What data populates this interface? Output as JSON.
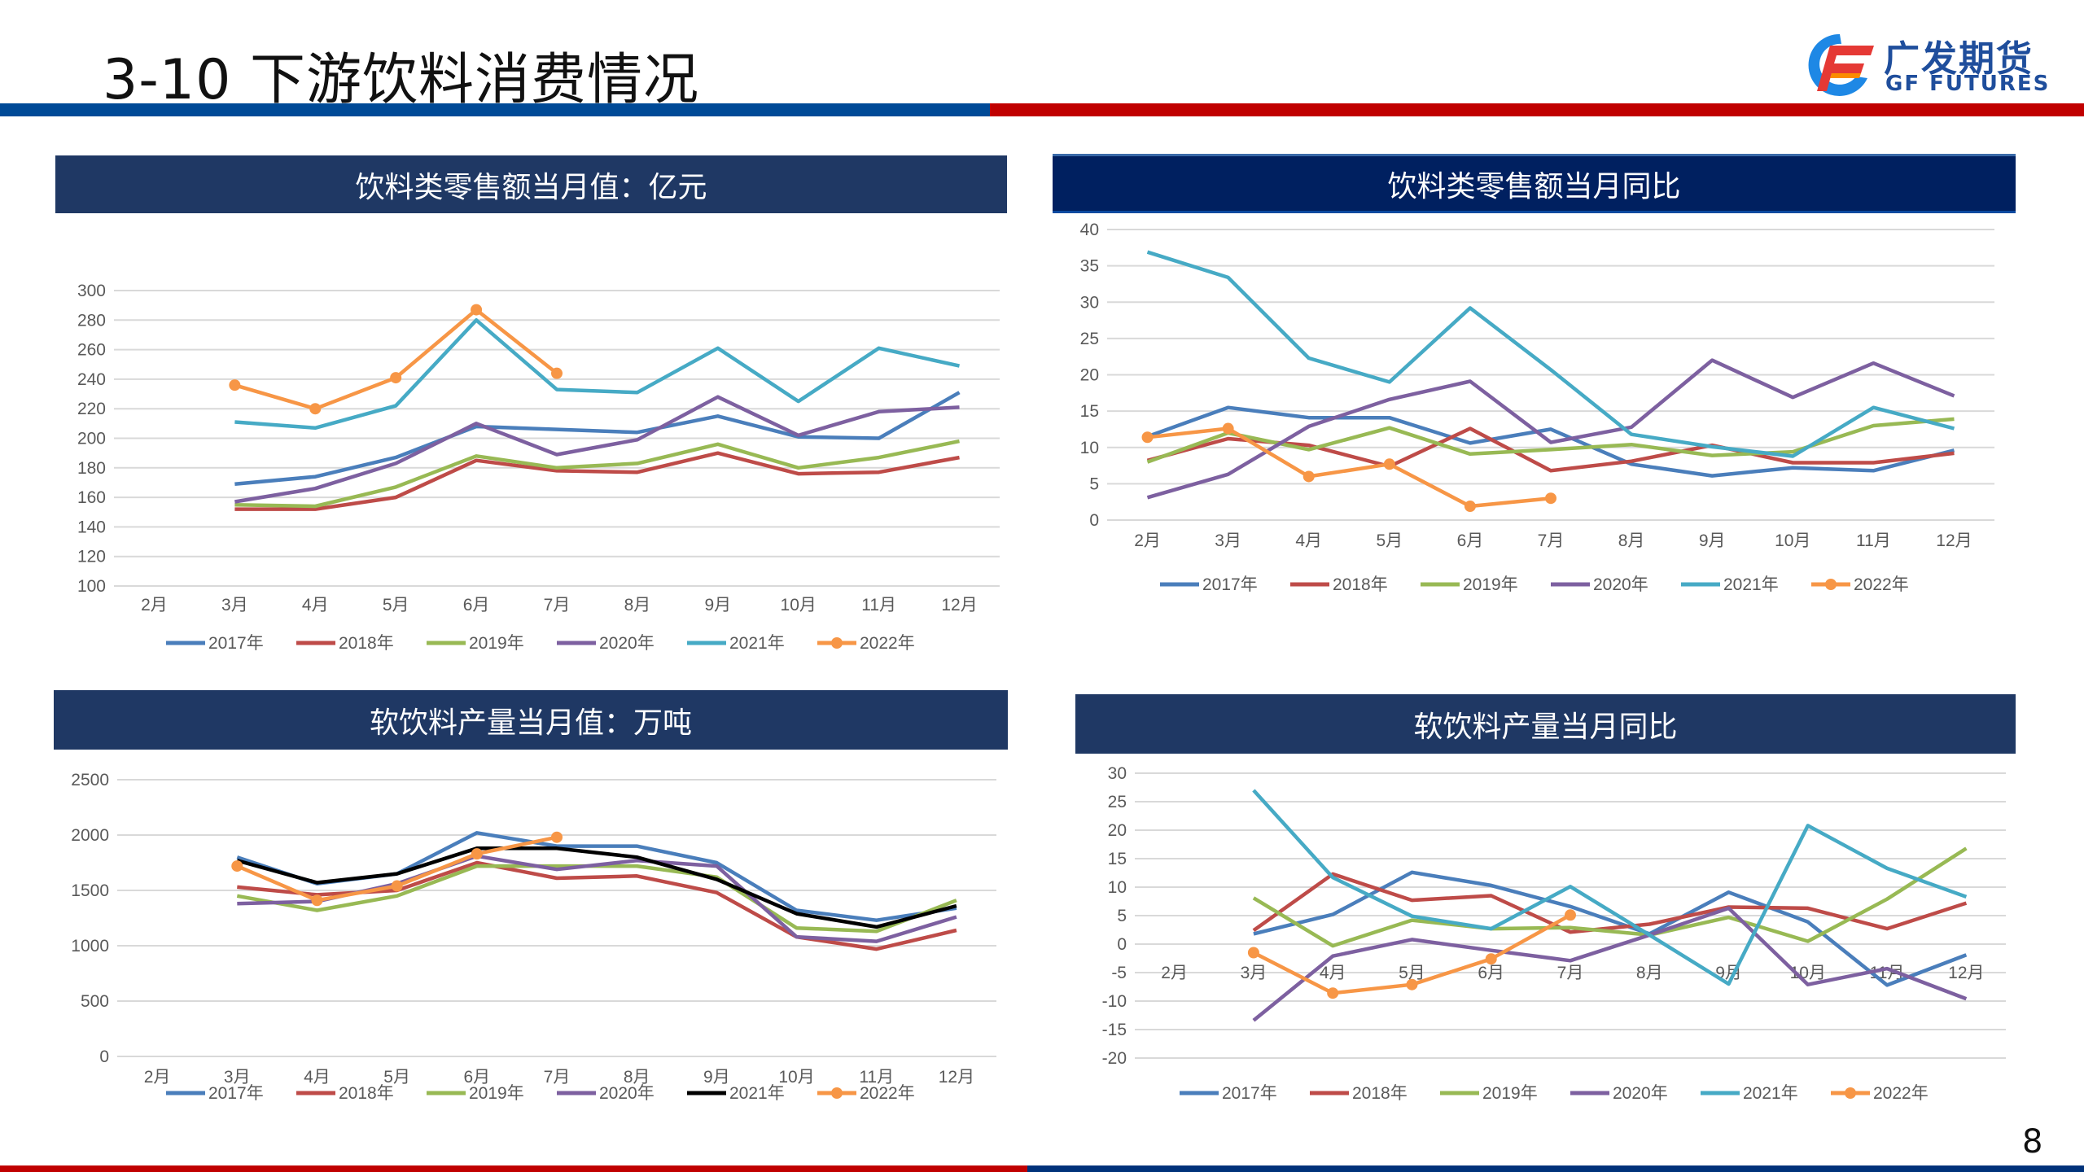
{
  "page": {
    "title": "3-10 下游饮料消费情况",
    "page_number": "8",
    "logo": {
      "cn": "广发期货",
      "en": "GF FUTURES"
    }
  },
  "colors": {
    "2017年": "#4a7ebb",
    "2018年": "#be4b48",
    "2019年": "#98b954",
    "2020年": "#7d60a0",
    "2021年": "#46aac5",
    "2021年_black": "#000000",
    "2022年": "#f79646"
  },
  "panels": [
    {
      "header": "饮料类零售额当月值：亿元"
    },
    {
      "header": "饮料类零售额当月同比"
    },
    {
      "header": "软饮料产量当月值：万吨"
    },
    {
      "header": "软饮料产量当月同比"
    }
  ],
  "chart_data": [
    {
      "type": "line",
      "title": "饮料类零售额当月值：亿元",
      "categories": [
        "2月",
        "3月",
        "4月",
        "5月",
        "6月",
        "7月",
        "8月",
        "9月",
        "10月",
        "11月",
        "12月"
      ],
      "ylim": [
        100,
        300
      ],
      "yticks": [
        100,
        120,
        140,
        160,
        180,
        200,
        220,
        240,
        260,
        280,
        300
      ],
      "grid": true,
      "legend": "bottom",
      "series": [
        {
          "name": "2017年",
          "color": "#4a7ebb",
          "values": [
            null,
            169,
            174,
            187,
            208,
            206,
            204,
            215,
            201,
            200,
            231
          ]
        },
        {
          "name": "2018年",
          "color": "#be4b48",
          "values": [
            null,
            152,
            152,
            160,
            185,
            178,
            177,
            190,
            176,
            177,
            187
          ]
        },
        {
          "name": "2019年",
          "color": "#98b954",
          "values": [
            null,
            155,
            154,
            167,
            188,
            180,
            183,
            196,
            180,
            187,
            198
          ]
        },
        {
          "name": "2020年",
          "color": "#7d60a0",
          "values": [
            null,
            157,
            166,
            183,
            210,
            189,
            199,
            228,
            202,
            218,
            221
          ]
        },
        {
          "name": "2021年",
          "color": "#46aac5",
          "values": [
            null,
            211,
            207,
            222,
            280,
            233,
            231,
            261,
            225,
            261,
            249
          ]
        },
        {
          "name": "2022年",
          "color": "#f79646",
          "marker": true,
          "values": [
            null,
            236,
            220,
            241,
            287,
            244,
            null,
            null,
            null,
            null,
            null
          ]
        }
      ]
    },
    {
      "type": "line",
      "title": "饮料类零售额当月同比",
      "categories": [
        "2月",
        "3月",
        "4月",
        "5月",
        "6月",
        "7月",
        "8月",
        "9月",
        "10月",
        "11月",
        "12月"
      ],
      "ylim": [
        0,
        40
      ],
      "yticks": [
        0,
        5,
        10,
        15,
        20,
        25,
        30,
        35,
        40
      ],
      "grid": true,
      "legend": "bottom",
      "series": [
        {
          "name": "2017年",
          "color": "#4a7ebb",
          "values": [
            11.5,
            15.5,
            14.1,
            14.1,
            10.6,
            12.5,
            7.7,
            6.1,
            7.2,
            6.8,
            9.6
          ]
        },
        {
          "name": "2018年",
          "color": "#be4b48",
          "values": [
            8.2,
            11.2,
            10.3,
            7.4,
            12.6,
            6.8,
            8.1,
            10.3,
            7.9,
            7.9,
            9.2
          ]
        },
        {
          "name": "2019年",
          "color": "#98b954",
          "values": [
            8.0,
            12.0,
            9.7,
            12.7,
            9.1,
            9.7,
            10.4,
            8.9,
            9.4,
            13.0,
            13.9
          ]
        },
        {
          "name": "2020年",
          "color": "#7d60a0",
          "values": [
            3.1,
            6.3,
            12.9,
            16.6,
            19.1,
            10.7,
            12.8,
            22.0,
            16.9,
            21.6,
            17.1
          ]
        },
        {
          "name": "2021年",
          "color": "#46aac5",
          "values": [
            36.9,
            33.4,
            22.3,
            19.0,
            29.2,
            20.7,
            11.8,
            10.1,
            8.8,
            15.5,
            12.6
          ]
        },
        {
          "name": "2022年",
          "color": "#f79646",
          "marker": true,
          "values": [
            11.4,
            12.6,
            6.0,
            7.7,
            1.9,
            3.0,
            null,
            null,
            null,
            null,
            null
          ]
        }
      ]
    },
    {
      "type": "line",
      "title": "软饮料产量当月值：万吨",
      "categories": [
        "2月",
        "3月",
        "4月",
        "5月",
        "6月",
        "7月",
        "8月",
        "9月",
        "10月",
        "11月",
        "12月"
      ],
      "ylim": [
        0,
        2500
      ],
      "yticks": [
        0,
        500,
        1000,
        1500,
        2000,
        2500
      ],
      "grid": true,
      "legend": "bottom",
      "series": [
        {
          "name": "2017年",
          "color": "#4a7ebb",
          "values": [
            null,
            1800,
            1560,
            1650,
            2020,
            1900,
            1900,
            1750,
            1320,
            1230,
            1340
          ]
        },
        {
          "name": "2018年",
          "color": "#be4b48",
          "values": [
            null,
            1530,
            1460,
            1500,
            1750,
            1610,
            1630,
            1480,
            1080,
            970,
            1140
          ]
        },
        {
          "name": "2019年",
          "color": "#98b954",
          "values": [
            null,
            1450,
            1320,
            1450,
            1720,
            1720,
            1720,
            1620,
            1160,
            1130,
            1410
          ]
        },
        {
          "name": "2020年",
          "color": "#7d60a0",
          "values": [
            null,
            1380,
            1400,
            1560,
            1810,
            1690,
            1770,
            1720,
            1080,
            1040,
            1260
          ]
        },
        {
          "name": "2021年",
          "color": "#000000",
          "values": [
            null,
            1770,
            1570,
            1650,
            1880,
            1880,
            1800,
            1600,
            1290,
            1170,
            1360
          ]
        },
        {
          "name": "2022年",
          "color": "#f79646",
          "marker": true,
          "values": [
            null,
            1720,
            1410,
            1540,
            1830,
            1980,
            null,
            null,
            null,
            null,
            null
          ]
        }
      ]
    },
    {
      "type": "line",
      "title": "软饮料产量当月同比",
      "categories": [
        "2月",
        "3月",
        "4月",
        "5月",
        "6月",
        "7月",
        "8月",
        "9月",
        "10月",
        "11月",
        "12月"
      ],
      "ylim": [
        -20,
        30
      ],
      "yticks": [
        -20,
        -15,
        -10,
        -5,
        0,
        5,
        10,
        15,
        20,
        25,
        30
      ],
      "grid": true,
      "legend": "bottom",
      "series": [
        {
          "name": "2017年",
          "color": "#4a7ebb",
          "values": [
            null,
            1.8,
            5.2,
            12.6,
            10.3,
            6.6,
            1.8,
            9.1,
            3.9,
            -7.2,
            -1.9
          ]
        },
        {
          "name": "2018年",
          "color": "#be4b48",
          "values": [
            null,
            2.4,
            12.3,
            7.7,
            8.5,
            2.1,
            3.5,
            6.5,
            6.3,
            2.7,
            7.2
          ]
        },
        {
          "name": "2019年",
          "color": "#98b954",
          "values": [
            null,
            8.1,
            -0.3,
            4.2,
            2.7,
            2.9,
            1.6,
            4.7,
            0.5,
            7.9,
            16.8
          ]
        },
        {
          "name": "2020年",
          "color": "#7d60a0",
          "values": [
            null,
            -13.4,
            -2.1,
            0.8,
            -1.1,
            -2.9,
            1.6,
            6.3,
            -7.1,
            -4.3,
            -9.6
          ]
        },
        {
          "name": "2021年",
          "color": "#46aac5",
          "values": [
            null,
            27.0,
            11.7,
            4.9,
            2.7,
            10.1,
            1.6,
            -7.0,
            20.8,
            13.3,
            8.3
          ]
        },
        {
          "name": "2022年",
          "color": "#f79646",
          "marker": true,
          "values": [
            null,
            -1.5,
            -8.6,
            -7.1,
            -2.6,
            5.1,
            null,
            null,
            null,
            null,
            null
          ]
        }
      ]
    }
  ]
}
